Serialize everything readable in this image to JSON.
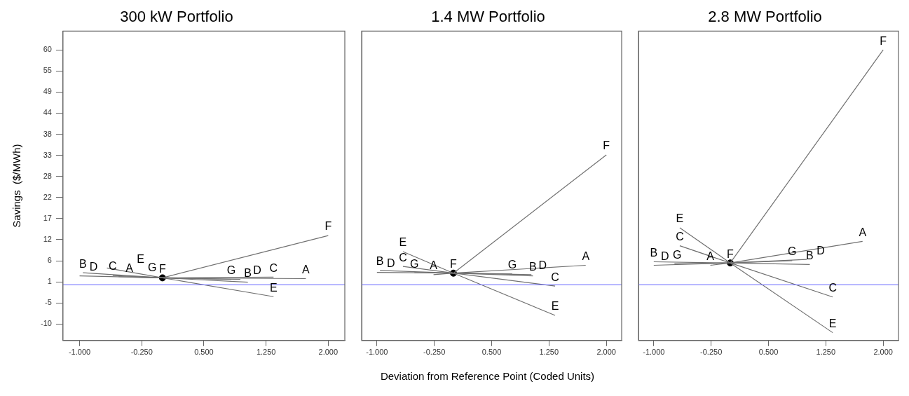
{
  "chart_data": [
    {
      "type": "line",
      "title": "300 kW Portfolio",
      "ylabel": "Savings  ($/MWh)",
      "xlim": [
        -1.2,
        2.2
      ],
      "xticks": [
        {
          "value": -1,
          "label": "-1.000"
        },
        {
          "value": -0.25,
          "label": "-0.250"
        },
        {
          "value": 0.5,
          "label": "0.500"
        },
        {
          "value": 1.25,
          "label": "1.250"
        },
        {
          "value": 2,
          "label": "2.000"
        }
      ],
      "ylim": [
        -14.2,
        64.8
      ],
      "yticks": [
        {
          "value": -10,
          "label": "-10"
        },
        {
          "value": -4.62,
          "label": "-5"
        },
        {
          "value": 0.77,
          "label": "1"
        },
        {
          "value": 6.15,
          "label": "6"
        },
        {
          "value": 11.54,
          "label": "12"
        },
        {
          "value": 16.92,
          "label": "17"
        },
        {
          "value": 22.31,
          "label": "22"
        },
        {
          "value": 27.69,
          "label": "28"
        },
        {
          "value": 33.08,
          "label": "33"
        },
        {
          "value": 38.46,
          "label": "38"
        },
        {
          "value": 43.85,
          "label": "44"
        },
        {
          "value": 49.23,
          "label": "49"
        },
        {
          "value": 54.62,
          "label": "55"
        },
        {
          "value": 60,
          "label": "60"
        }
      ],
      "marker": "none",
      "ref_lines": [
        {
          "axis": "y",
          "value": 0,
          "color": "#8080ff"
        }
      ],
      "series": [
        {
          "name": "A",
          "color": "#707070",
          "x": [
            -0.4,
            0,
            1.73
          ],
          "values": [
            2.0,
            1.8,
            1.6
          ]
        },
        {
          "name": "B",
          "color": "#707070",
          "x": [
            -0.96,
            0,
            1.03
          ],
          "values": [
            3.1,
            1.8,
            0.7
          ]
        },
        {
          "name": "C",
          "color": "#707070",
          "x": [
            -0.6,
            0,
            1.34
          ],
          "values": [
            2.4,
            1.8,
            2.0
          ]
        },
        {
          "name": "D",
          "color": "#707070",
          "x": [
            -1.0,
            0,
            0.94
          ],
          "values": [
            2.3,
            1.8,
            1.4
          ]
        },
        {
          "name": "E",
          "color": "#707070",
          "x": [
            -0.67,
            0,
            1.34
          ],
          "values": [
            4.3,
            1.8,
            -3.0
          ]
        },
        {
          "name": "F",
          "color": "#707070",
          "x": [
            0,
            2.0
          ],
          "values": [
            1.8,
            12.6
          ]
        },
        {
          "name": "G",
          "color": "#707070",
          "x": [
            -0.53,
            0,
            0.83
          ],
          "values": [
            2.1,
            1.8,
            1.4
          ]
        },
        {
          "type": "scatter",
          "marker": "circle",
          "color": "#000000",
          "x": [
            0
          ],
          "values": [
            1.8
          ]
        }
      ]
    },
    {
      "type": "line",
      "title": "1.4 MW Portfolio",
      "xlabel": "Deviation from Reference Point (Coded Units)",
      "tick_labels": "x",
      "xlim": [
        -1.2,
        2.2
      ],
      "xticks": [
        {
          "value": -1,
          "label": "-1.000"
        },
        {
          "value": -0.25,
          "label": "-0.250"
        },
        {
          "value": 0.5,
          "label": "0.500"
        },
        {
          "value": 1.25,
          "label": "1.250"
        },
        {
          "value": 2,
          "label": "2.000"
        }
      ],
      "ylim": [
        -14.2,
        64.8
      ],
      "marker": "none",
      "ref_lines": [
        {
          "axis": "y",
          "value": 0,
          "color": "#8080ff"
        }
      ],
      "series": [
        {
          "name": "A",
          "color": "#707070",
          "x": [
            -0.26,
            0,
            1.73
          ],
          "values": [
            2.6,
            3.0,
            5.0
          ]
        },
        {
          "name": "B",
          "color": "#707070",
          "x": [
            -0.96,
            0,
            1.04
          ],
          "values": [
            3.7,
            3.0,
            2.3
          ]
        },
        {
          "name": "C",
          "color": "#707070",
          "x": [
            -0.66,
            0,
            1.33
          ],
          "values": [
            4.7,
            3.0,
            -0.3
          ]
        },
        {
          "name": "D",
          "color": "#707070",
          "x": [
            -1.0,
            0,
            1.02
          ],
          "values": [
            3.2,
            3.0,
            2.6
          ]
        },
        {
          "name": "E",
          "color": "#707070",
          "x": [
            -0.66,
            0,
            1.33
          ],
          "values": [
            8.5,
            3.0,
            -7.8
          ]
        },
        {
          "name": "F",
          "color": "#707070",
          "x": [
            0,
            2.0
          ],
          "values": [
            3.0,
            33.2
          ]
        },
        {
          "name": "G",
          "color": "#707070",
          "x": [
            -0.51,
            0,
            0.77
          ],
          "values": [
            3.1,
            3.0,
            2.8
          ]
        },
        {
          "type": "scatter",
          "marker": "circle",
          "color": "#000000",
          "x": [
            0
          ],
          "values": [
            3.0
          ]
        }
      ]
    },
    {
      "type": "line",
      "title": "2.8 MW Portfolio",
      "tick_labels": "x",
      "xlim": [
        -1.2,
        2.2
      ],
      "xticks": [
        {
          "value": -1,
          "label": "-1.000"
        },
        {
          "value": -0.25,
          "label": "-0.250"
        },
        {
          "value": 0.5,
          "label": "0.500"
        },
        {
          "value": 1.25,
          "label": "1.250"
        },
        {
          "value": 2,
          "label": "2.000"
        }
      ],
      "ylim": [
        -14.2,
        64.8
      ],
      "marker": "none",
      "ref_lines": [
        {
          "axis": "y",
          "value": 0,
          "color": "#8080ff"
        }
      ],
      "series": [
        {
          "name": "A",
          "color": "#707070",
          "x": [
            -0.26,
            0,
            1.73
          ],
          "values": [
            5.0,
            5.6,
            11.1
          ]
        },
        {
          "name": "B",
          "color": "#707070",
          "x": [
            -1.0,
            0,
            1.04
          ],
          "values": [
            5.9,
            5.6,
            5.2
          ]
        },
        {
          "name": "C",
          "color": "#707070",
          "x": [
            -0.66,
            0,
            1.34
          ],
          "values": [
            10.0,
            5.6,
            -3.1
          ]
        },
        {
          "name": "D",
          "color": "#707070",
          "x": [
            -1.0,
            0,
            1.0
          ],
          "values": [
            5.0,
            5.6,
            6.5
          ]
        },
        {
          "name": "E",
          "color": "#707070",
          "x": [
            -0.66,
            0,
            1.34
          ],
          "values": [
            14.6,
            5.6,
            -12.2
          ]
        },
        {
          "name": "F",
          "color": "#707070",
          "x": [
            0,
            2.0
          ],
          "values": [
            5.6,
            60
          ]
        },
        {
          "name": "G",
          "color": "#707070",
          "x": [
            -0.73,
            0,
            0.81
          ],
          "values": [
            5.4,
            5.6,
            6.2
          ]
        },
        {
          "type": "scatter",
          "marker": "circle",
          "color": "#000000",
          "x": [
            0
          ],
          "values": [
            5.6
          ]
        }
      ]
    }
  ]
}
